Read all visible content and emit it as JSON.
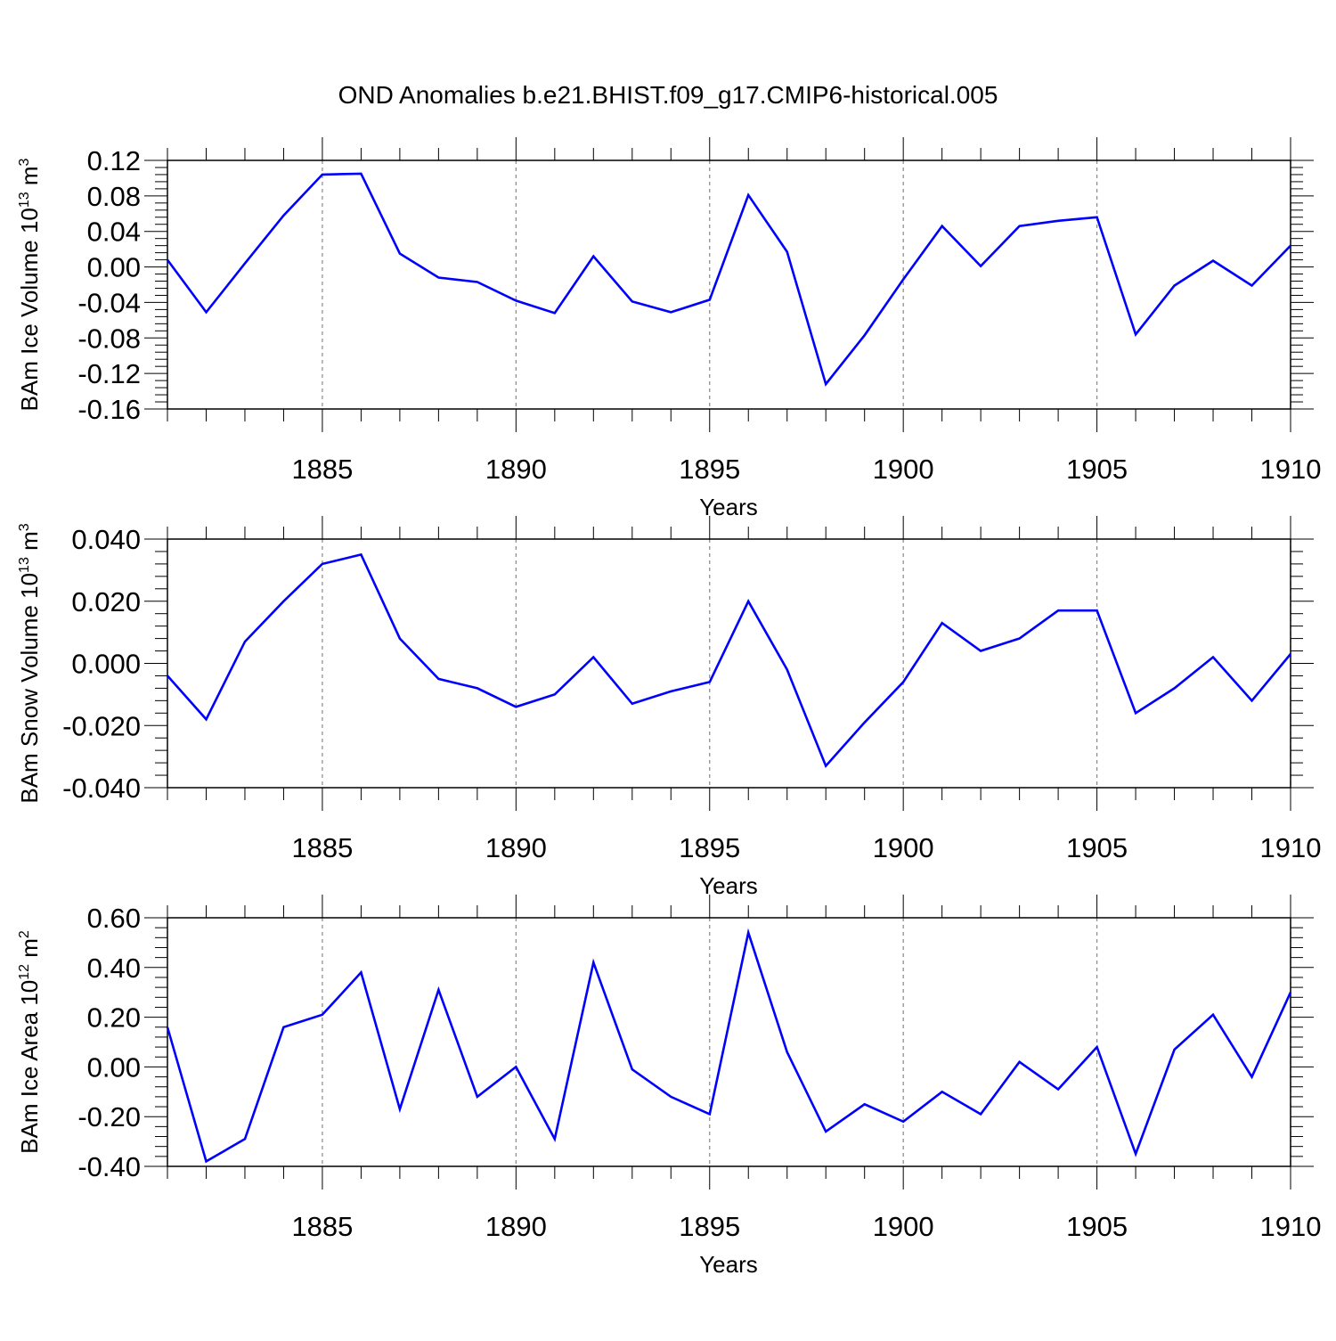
{
  "title": "OND Anomalies b.e21.BHIST.f09_g17.CMIP6-historical.005",
  "line_color": "#0000ff",
  "chart_data": [
    {
      "type": "line",
      "ylabel": "BAm Ice Volume 10",
      "ylabel_exp": "13",
      "ylabel_unit": " m",
      "ylabel_unit_exp": "3",
      "xlabel": "Years",
      "xlim": [
        1881,
        1910
      ],
      "ylim": [
        -0.16,
        0.12
      ],
      "x_ticks": [
        "1885",
        "1890",
        "1895",
        "1900",
        "1905",
        "1910"
      ],
      "y_ticks": [
        "0.12",
        "0.08",
        "0.04",
        "0.00",
        "-0.04",
        "-0.08",
        "-0.12",
        "-0.16"
      ],
      "x": [
        1881,
        1882,
        1883,
        1884,
        1885,
        1886,
        1887,
        1888,
        1889,
        1890,
        1891,
        1892,
        1893,
        1894,
        1895,
        1896,
        1897,
        1898,
        1899,
        1900,
        1901,
        1902,
        1903,
        1904,
        1905,
        1906,
        1907,
        1908,
        1909,
        1910
      ],
      "values": [
        0.008,
        -0.051,
        0.004,
        0.058,
        0.104,
        0.105,
        0.015,
        -0.012,
        -0.017,
        -0.038,
        -0.052,
        0.012,
        -0.039,
        -0.051,
        -0.037,
        0.081,
        0.017,
        -0.132,
        -0.077,
        -0.014,
        0.046,
        0.001,
        0.046,
        0.052,
        0.056,
        -0.076,
        -0.021,
        0.007,
        -0.021,
        0.024
      ]
    },
    {
      "type": "line",
      "ylabel": "BAm Snow Volume 10",
      "ylabel_exp": "13",
      "ylabel_unit": " m",
      "ylabel_unit_exp": "3",
      "xlabel": "Years",
      "xlim": [
        1881,
        1910
      ],
      "ylim": [
        -0.04,
        0.04
      ],
      "x_ticks": [
        "1885",
        "1890",
        "1895",
        "1900",
        "1905",
        "1910"
      ],
      "y_ticks": [
        "0.040",
        "0.020",
        "0.000",
        "-0.020",
        "-0.040"
      ],
      "x": [
        1881,
        1882,
        1883,
        1884,
        1885,
        1886,
        1887,
        1888,
        1889,
        1890,
        1891,
        1892,
        1893,
        1894,
        1895,
        1896,
        1897,
        1898,
        1899,
        1900,
        1901,
        1902,
        1903,
        1904,
        1905,
        1906,
        1907,
        1908,
        1909,
        1910
      ],
      "values": [
        -0.004,
        -0.018,
        0.007,
        0.02,
        0.032,
        0.035,
        0.008,
        -0.005,
        -0.008,
        -0.014,
        -0.01,
        0.002,
        -0.013,
        -0.009,
        -0.006,
        0.02,
        -0.002,
        -0.033,
        -0.019,
        -0.006,
        0.013,
        0.004,
        0.008,
        0.017,
        0.017,
        -0.016,
        -0.008,
        0.002,
        -0.012,
        0.003
      ]
    },
    {
      "type": "line",
      "ylabel": "BAm Ice Area 10",
      "ylabel_exp": "12",
      "ylabel_unit": " m",
      "ylabel_unit_exp": "2",
      "xlabel": "Years",
      "xlim": [
        1881,
        1910
      ],
      "ylim": [
        -0.4,
        0.6
      ],
      "x_ticks": [
        "1885",
        "1890",
        "1895",
        "1900",
        "1905",
        "1910"
      ],
      "y_ticks": [
        "0.60",
        "0.40",
        "0.20",
        "0.00",
        "-0.20",
        "-0.40"
      ],
      "x": [
        1881,
        1882,
        1883,
        1884,
        1885,
        1886,
        1887,
        1888,
        1889,
        1890,
        1891,
        1892,
        1893,
        1894,
        1895,
        1896,
        1897,
        1898,
        1899,
        1900,
        1901,
        1902,
        1903,
        1904,
        1905,
        1906,
        1907,
        1908,
        1909,
        1910
      ],
      "values": [
        0.16,
        -0.38,
        -0.29,
        0.16,
        0.21,
        0.38,
        -0.17,
        0.31,
        -0.12,
        0.0,
        -0.29,
        0.42,
        -0.01,
        -0.12,
        -0.19,
        0.54,
        0.06,
        -0.26,
        -0.15,
        -0.22,
        -0.1,
        -0.19,
        0.02,
        -0.09,
        0.08,
        -0.35,
        0.07,
        0.21,
        -0.04,
        0.3
      ]
    }
  ]
}
